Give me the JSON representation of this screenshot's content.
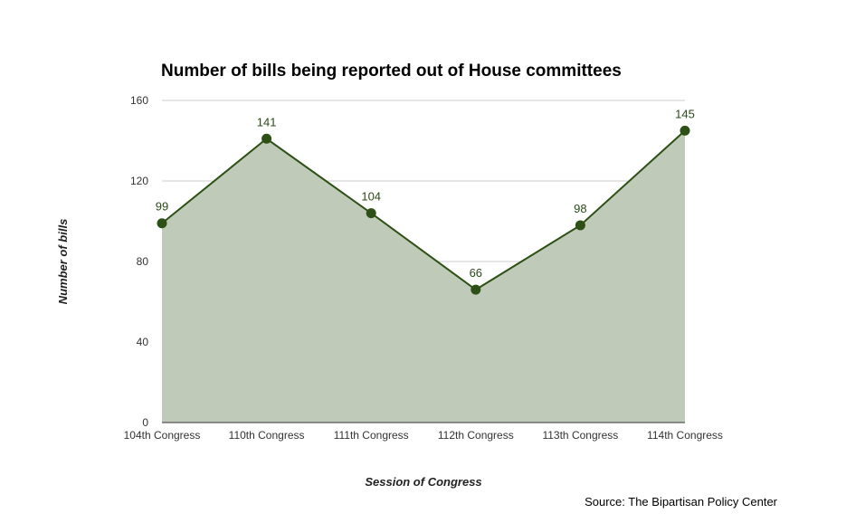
{
  "chart_data": {
    "type": "area",
    "title": "Number of bills being reported out of House committees",
    "xlabel": "Session of Congress",
    "ylabel": "Number of bills",
    "categories": [
      "104th Congress",
      "110th Congress",
      "111th Congress",
      "112th Congress",
      "113th Congress",
      "114th Congress"
    ],
    "values": [
      99,
      141,
      104,
      66,
      98,
      145
    ],
    "data_labels": [
      "99",
      "141",
      "104",
      "66",
      "98",
      "145"
    ],
    "ylim": [
      0,
      160
    ],
    "yticks": [
      0,
      40,
      80,
      120,
      160
    ],
    "ytick_labels": [
      "0",
      "40",
      "80",
      "120",
      "160"
    ],
    "grid": true,
    "legend": "none",
    "colors": {
      "line": "#2d5016",
      "fill": "#bfcbb8",
      "grid": "#cccccc",
      "axis": "#333333"
    }
  },
  "source": "Source: The Bipartisan Policy Center"
}
